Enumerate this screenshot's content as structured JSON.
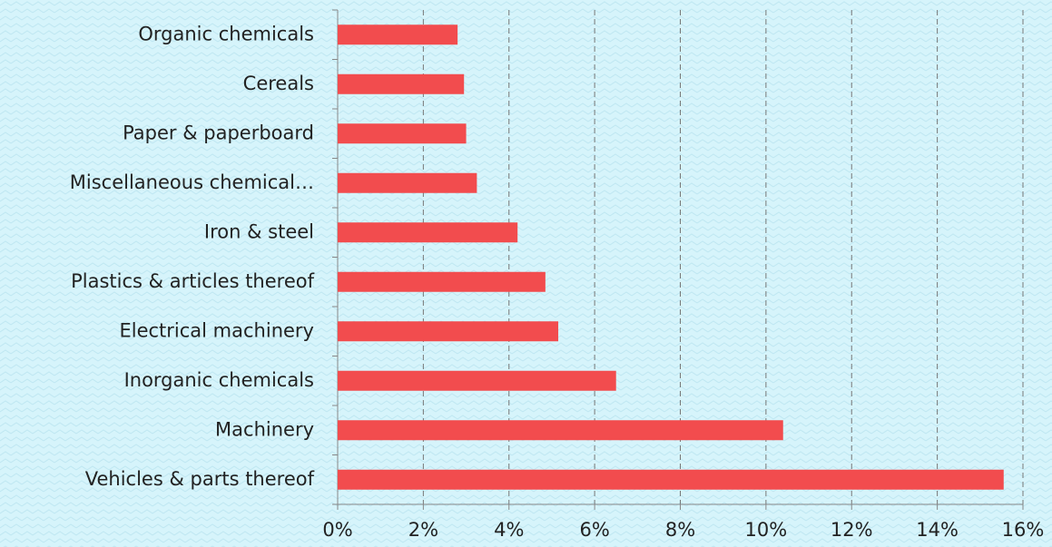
{
  "chart_data": {
    "type": "hbar",
    "categories": [
      "Organic chemicals",
      "Cereals",
      "Paper & paperboard",
      "Miscellaneous chemical…",
      "Iron & steel",
      "Plastics & articles thereof",
      "Electrical machinery",
      "Inorganic chemicals",
      "Machinery",
      "Vehicles & parts thereof"
    ],
    "values": [
      2.8,
      2.95,
      3.0,
      3.25,
      4.2,
      4.85,
      5.15,
      6.5,
      10.4,
      15.55
    ],
    "color": "#f24c4e",
    "xlim": [
      0,
      16
    ],
    "xticks": [
      {
        "value": 0,
        "label": "0%"
      },
      {
        "value": 2,
        "label": "2%"
      },
      {
        "value": 4,
        "label": "4%"
      },
      {
        "value": 6,
        "label": "6%"
      },
      {
        "value": 8,
        "label": "8%"
      },
      {
        "value": 10,
        "label": "10%"
      },
      {
        "value": 12,
        "label": "12%"
      },
      {
        "value": 14,
        "label": "14%"
      },
      {
        "value": 16,
        "label": "16%"
      }
    ],
    "grid": true
  }
}
